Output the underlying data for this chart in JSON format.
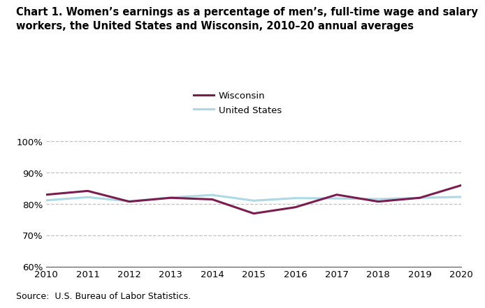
{
  "years": [
    2010,
    2011,
    2012,
    2013,
    2014,
    2015,
    2016,
    2017,
    2018,
    2019,
    2020
  ],
  "wisconsin": [
    83.0,
    84.2,
    80.8,
    82.0,
    81.5,
    77.0,
    79.0,
    83.0,
    80.8,
    82.0,
    86.0
  ],
  "us": [
    81.2,
    82.2,
    80.9,
    82.1,
    82.9,
    81.1,
    81.9,
    81.8,
    81.6,
    82.0,
    82.3
  ],
  "wisconsin_color": "#7B1C4E",
  "us_color": "#ADD8E6",
  "title": "Chart 1. Women’s earnings as a percentage of men’s, full-time wage and salary\nworkers, the United States and Wisconsin, 2010–20 annual averages",
  "legend_wisconsin": "Wisconsin",
  "legend_us": "United States",
  "ylim": [
    60,
    100
  ],
  "yticks": [
    60,
    70,
    80,
    90,
    100
  ],
  "xlim": [
    2010,
    2020
  ],
  "source": "Source:  U.S. Bureau of Labor Statistics.",
  "line_width": 2.2,
  "title_fontsize": 10.5,
  "tick_fontsize": 9.5,
  "source_fontsize": 9.0,
  "legend_fontsize": 9.5
}
